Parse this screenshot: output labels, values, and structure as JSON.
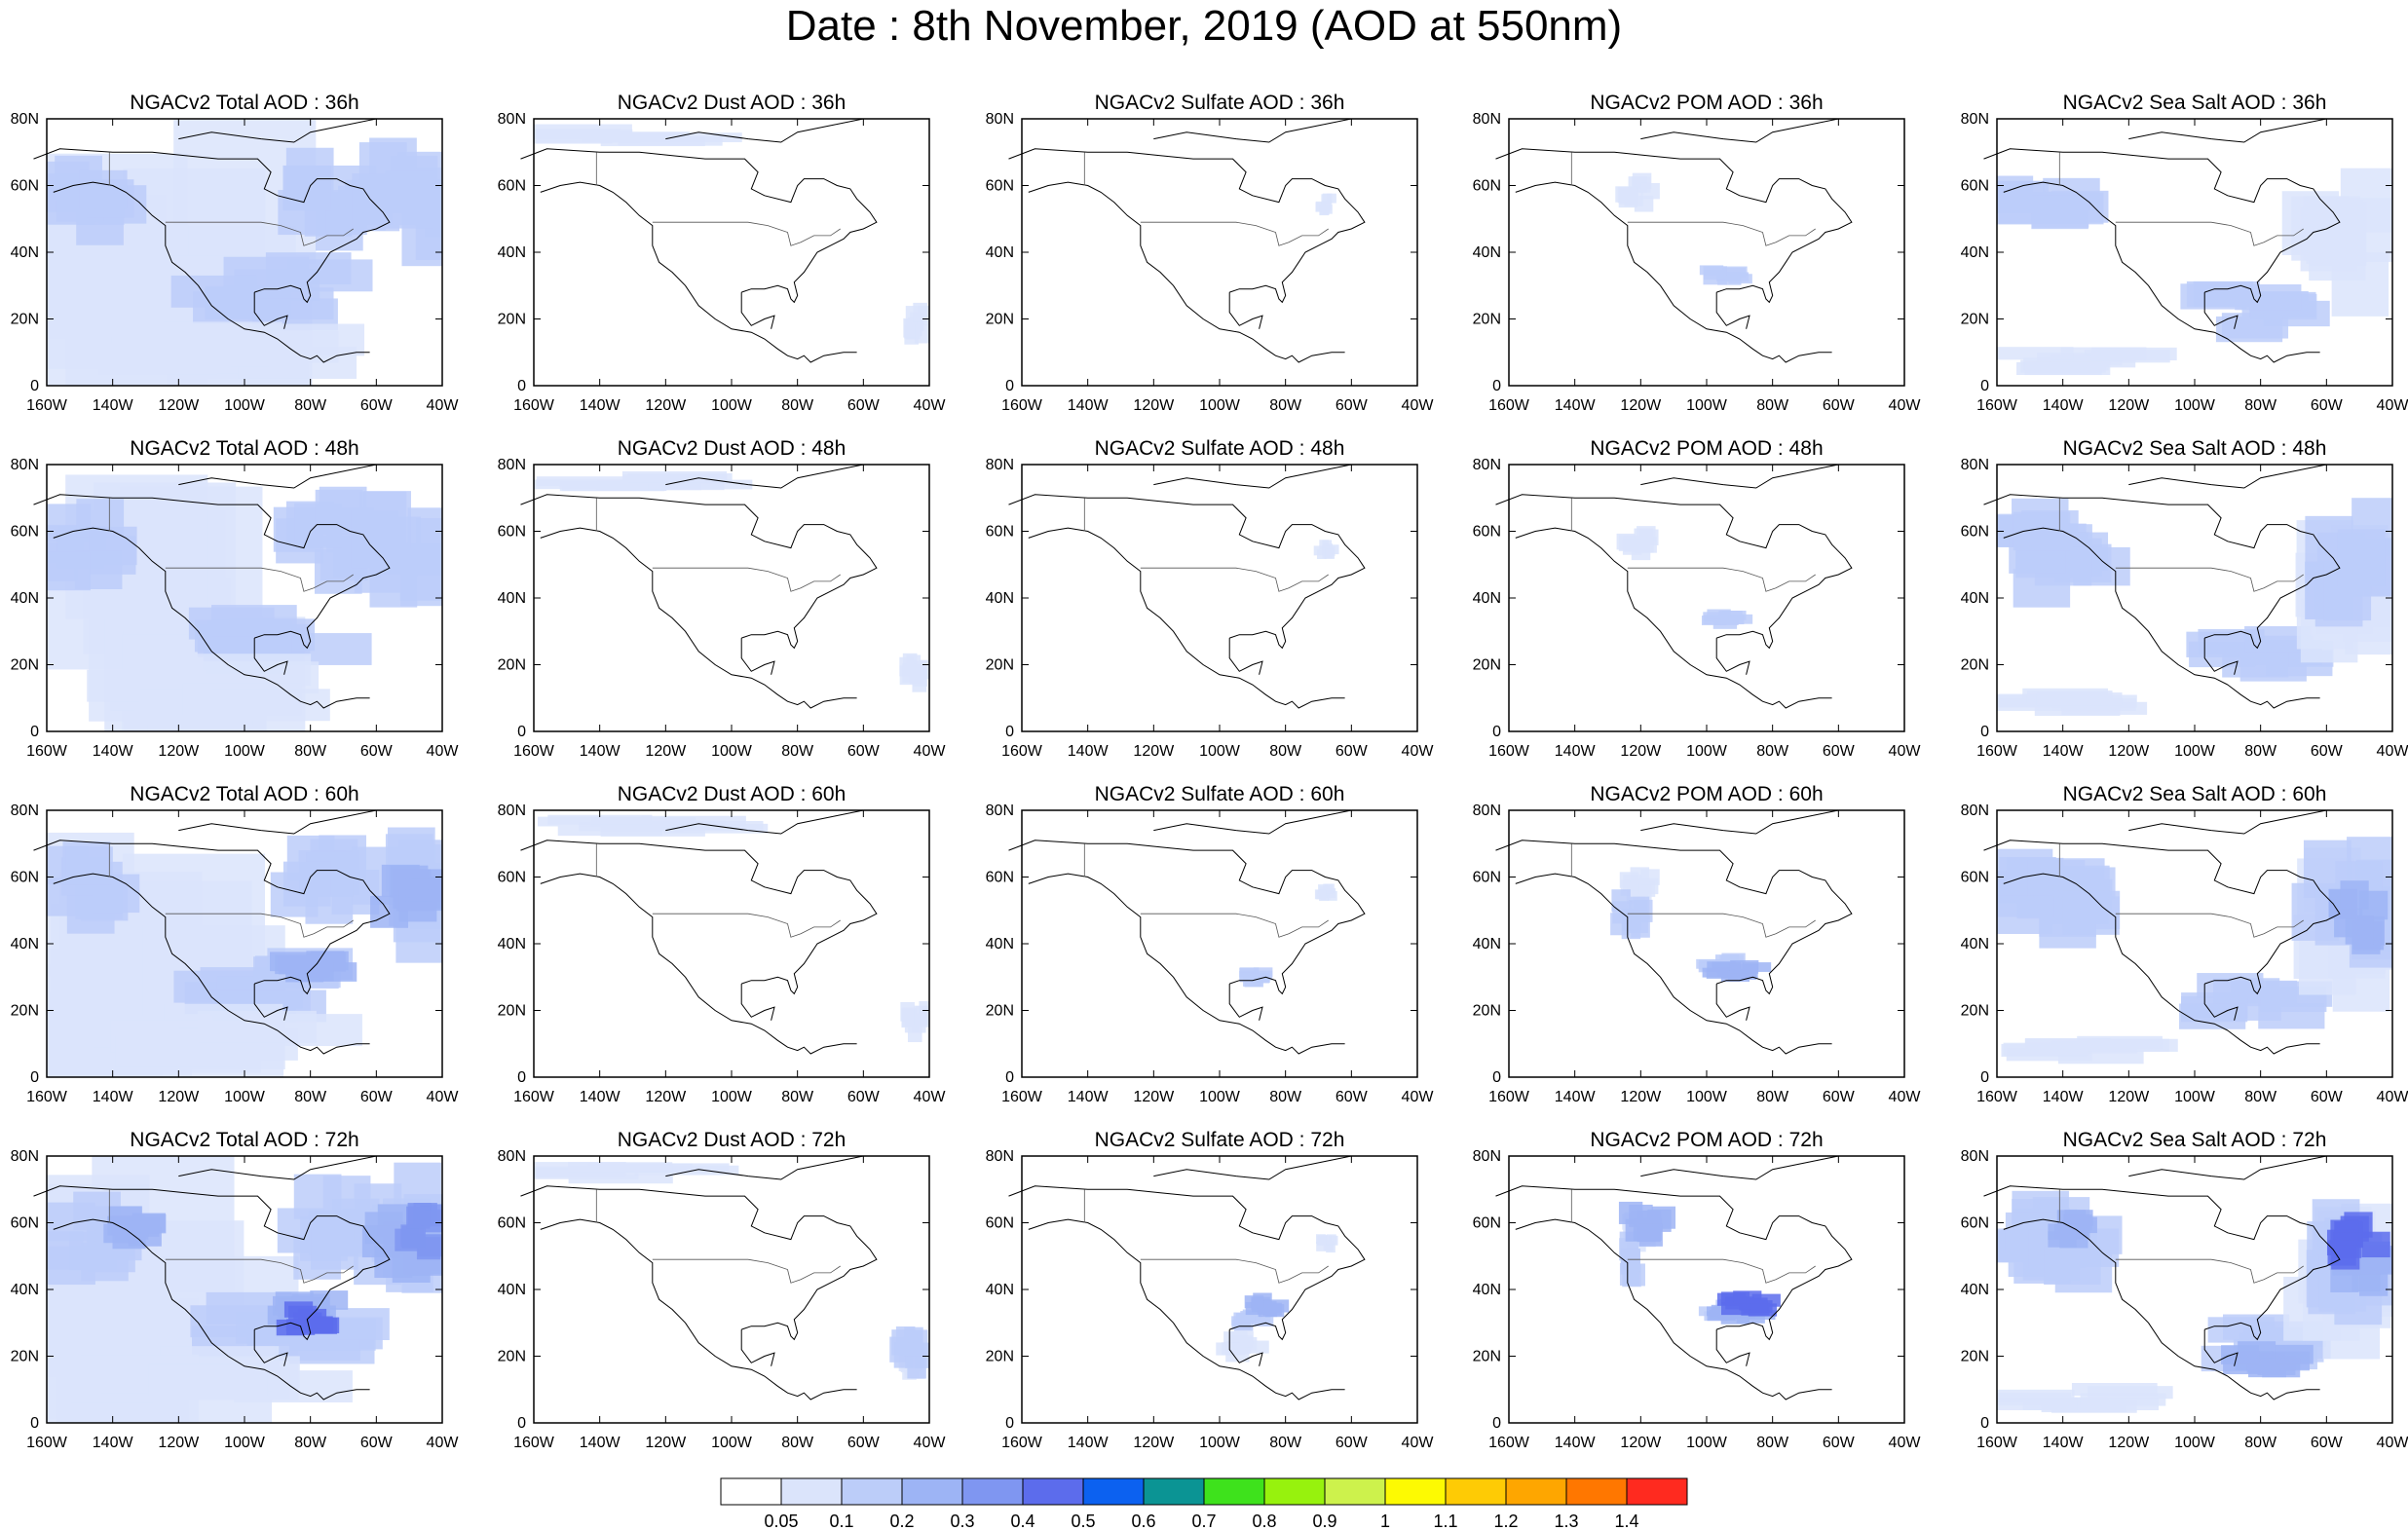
{
  "title": "Date : 8th November, 2019 (AOD at 550nm)",
  "panels": [
    [
      "NGACv2 Total AOD : 36h",
      "NGACv2 Dust AOD : 36h",
      "NGACv2 Sulfate AOD : 36h",
      "NGACv2 POM AOD : 36h",
      "NGACv2 Sea Salt AOD : 36h"
    ],
    [
      "NGACv2 Total AOD : 48h",
      "NGACv2 Dust AOD : 48h",
      "NGACv2 Sulfate AOD : 48h",
      "NGACv2 POM AOD : 48h",
      "NGACv2 Sea Salt AOD : 48h"
    ],
    [
      "NGACv2 Total AOD : 60h",
      "NGACv2 Dust AOD : 60h",
      "NGACv2 Sulfate AOD : 60h",
      "NGACv2 POM AOD : 60h",
      "NGACv2 Sea Salt AOD : 60h"
    ],
    [
      "NGACv2 Total AOD : 72h",
      "NGACv2 Dust AOD : 72h",
      "NGACv2 Sulfate AOD : 72h",
      "NGACv2 POM AOD : 72h",
      "NGACv2 Sea Salt  AOD : 72h"
    ]
  ],
  "lat_ticks": [
    "80N",
    "60N",
    "40N",
    "20N",
    "0"
  ],
  "lon_ticks": [
    "160W",
    "140W",
    "120W",
    "100W",
    "80W",
    "60W",
    "40W"
  ],
  "colorbar": {
    "colors": [
      "#ffffff",
      "#dbe4fb",
      "#bccdf9",
      "#9db4f5",
      "#7f96f1",
      "#5c6cec",
      "#0c61f0",
      "#0b9494",
      "#3ee21c",
      "#97f20d",
      "#cdf24c",
      "#fdfa02",
      "#fecb05",
      "#fea600",
      "#ff7700",
      "#ff2a1f"
    ],
    "labels": [
      "0.05",
      "0.1",
      "0.2",
      "0.3",
      "0.4",
      "0.5",
      "0.6",
      "0.7",
      "0.8",
      "0.9",
      "1",
      "1.1",
      "1.2",
      "1.3",
      "1.4"
    ]
  }
}
